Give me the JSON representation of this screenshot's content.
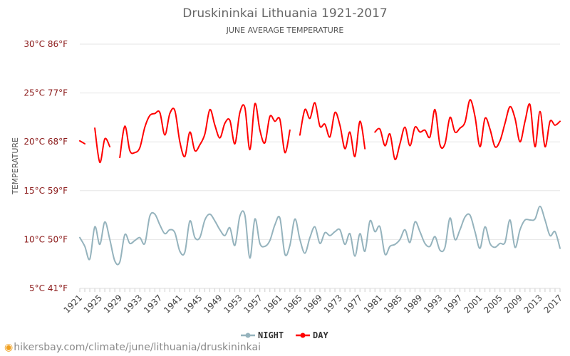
{
  "source_url": "hikersbay.com/climate/june/lithuania/druskininkai",
  "colors": {
    "night": "#95b3bd",
    "day": "#ff0000",
    "grid": "#e6e6e6",
    "source_pin": "#f0a020"
  },
  "chart_data": {
    "type": "line",
    "title": "Druskininkai Lithuania 1921-2017",
    "subtitle": "JUNE AVERAGE TEMPERATURE",
    "ylabel": "TEMPERATURE",
    "xlabel": "",
    "ylim": [
      5,
      30
    ],
    "xlim": [
      1921,
      2017
    ],
    "ytick_values": [
      5,
      10,
      15,
      20,
      25,
      30
    ],
    "yticks": [
      "5°C 41°F",
      "10°C 50°F",
      "15°C 59°F",
      "20°C 68°F",
      "25°C 77°F",
      "30°C 86°F"
    ],
    "xticks": [
      "1921",
      "1925",
      "1929",
      "1933",
      "1937",
      "1941",
      "1945",
      "1949",
      "1953",
      "1957",
      "1961",
      "1965",
      "1969",
      "1973",
      "1977",
      "1981",
      "1985",
      "1989",
      "1993",
      "1997",
      "2001",
      "2005",
      "2009",
      "2013",
      "2017"
    ],
    "grid": true,
    "legend_position": "bottom-center",
    "series": [
      {
        "name": "NIGHT",
        "color": "#95b3bd",
        "x": [
          1921,
          1922,
          1923,
          1924,
          1925,
          1926,
          1927,
          1928,
          1929,
          1930,
          1931,
          1932,
          1933,
          1934,
          1935,
          1936,
          1937,
          1938,
          1939,
          1940,
          1941,
          1942,
          1943,
          1944,
          1945,
          1946,
          1947,
          1948,
          1949,
          1950,
          1951,
          1952,
          1953,
          1954,
          1955,
          1956,
          1957,
          1958,
          1959,
          1960,
          1961,
          1962,
          1963,
          1964,
          1965,
          1966,
          1967,
          1968,
          1969,
          1970,
          1971,
          1972,
          1973,
          1974,
          1975,
          1976,
          1977,
          1978,
          1979,
          1980,
          1981,
          1982,
          1983,
          1984,
          1985,
          1986,
          1987,
          1988,
          1989,
          1990,
          1991,
          1992,
          1993,
          1994,
          1995,
          1996,
          1997,
          1998,
          1999,
          2000,
          2001,
          2002,
          2003,
          2004,
          2005,
          2006,
          2007,
          2008,
          2009,
          2010,
          2011,
          2012,
          2013,
          2014,
          2015,
          2016,
          2017
        ],
        "values": [
          10.2,
          9.3,
          8.0,
          11.3,
          9.5,
          11.8,
          10.0,
          7.8,
          7.7,
          10.5,
          9.6,
          9.9,
          10.2,
          9.6,
          12.4,
          12.6,
          11.5,
          10.6,
          11.0,
          10.7,
          8.8,
          8.7,
          11.9,
          10.2,
          10.2,
          12.0,
          12.6,
          11.9,
          11.0,
          10.4,
          11.2,
          9.4,
          12.4,
          12.5,
          8.1,
          12.1,
          9.6,
          9.3,
          9.9,
          11.5,
          12.2,
          8.5,
          9.4,
          12.1,
          10.0,
          8.6,
          10.2,
          11.3,
          9.6,
          10.7,
          10.4,
          10.8,
          11.0,
          9.5,
          10.6,
          8.3,
          10.6,
          8.8,
          11.9,
          10.8,
          11.3,
          8.5,
          9.3,
          9.5,
          10.0,
          11.0,
          9.7,
          11.8,
          10.8,
          9.6,
          9.3,
          10.3,
          8.9,
          9.2,
          12.2,
          10.0,
          11.0,
          12.3,
          12.5,
          10.8,
          9.1,
          11.3,
          9.6,
          9.2,
          9.6,
          9.7,
          12.0,
          9.2,
          11.0,
          12.0,
          12.0,
          12.1,
          13.4,
          12.0,
          10.4,
          10.8,
          9.1
        ]
      },
      {
        "name": "DAY",
        "color": "#ff0000",
        "x": [
          1921,
          1922,
          1923,
          1924,
          1925,
          1926,
          1927,
          1928,
          1929,
          1930,
          1931,
          1932,
          1933,
          1934,
          1935,
          1936,
          1937,
          1938,
          1939,
          1940,
          1941,
          1942,
          1943,
          1944,
          1945,
          1946,
          1947,
          1948,
          1949,
          1950,
          1951,
          1952,
          1953,
          1954,
          1955,
          1956,
          1957,
          1958,
          1959,
          1960,
          1961,
          1962,
          1963,
          1964,
          1965,
          1966,
          1967,
          1968,
          1969,
          1970,
          1971,
          1972,
          1973,
          1974,
          1975,
          1976,
          1977,
          1978,
          1979,
          1980,
          1981,
          1982,
          1983,
          1984,
          1985,
          1986,
          1987,
          1988,
          1989,
          1990,
          1991,
          1992,
          1993,
          1994,
          1995,
          1996,
          1997,
          1998,
          1999,
          2000,
          2001,
          2002,
          2003,
          2004,
          2005,
          2006,
          2007,
          2008,
          2009,
          2010,
          2011,
          2012,
          2013,
          2014,
          2015,
          2016,
          2017
        ],
        "values": [
          20.1,
          19.8,
          null,
          21.4,
          17.9,
          20.3,
          19.5,
          null,
          18.4,
          21.6,
          19.1,
          18.9,
          19.4,
          21.5,
          22.7,
          22.9,
          23.0,
          20.7,
          22.9,
          23.2,
          20.0,
          18.5,
          21.0,
          19.1,
          19.7,
          20.8,
          23.3,
          21.7,
          20.4,
          21.9,
          22.2,
          19.8,
          23.0,
          23.5,
          19.2,
          23.9,
          21.2,
          19.9,
          22.6,
          22.1,
          22.3,
          18.9,
          21.2,
          null,
          20.7,
          23.3,
          22.4,
          24.0,
          21.6,
          21.8,
          20.5,
          23.0,
          21.7,
          19.3,
          21.0,
          18.5,
          22.1,
          19.3,
          null,
          21.0,
          21.3,
          19.6,
          20.8,
          18.2,
          19.8,
          21.5,
          19.6,
          21.5,
          21.0,
          21.2,
          20.5,
          23.3,
          19.7,
          19.8,
          22.5,
          21.0,
          21.4,
          22.0,
          24.3,
          22.6,
          19.5,
          22.4,
          21.3,
          19.5,
          20.1,
          21.9,
          23.6,
          22.4,
          20.0,
          22.1,
          23.8,
          19.5,
          23.1,
          19.5,
          22.1,
          21.7,
          22.1
        ]
      }
    ]
  }
}
